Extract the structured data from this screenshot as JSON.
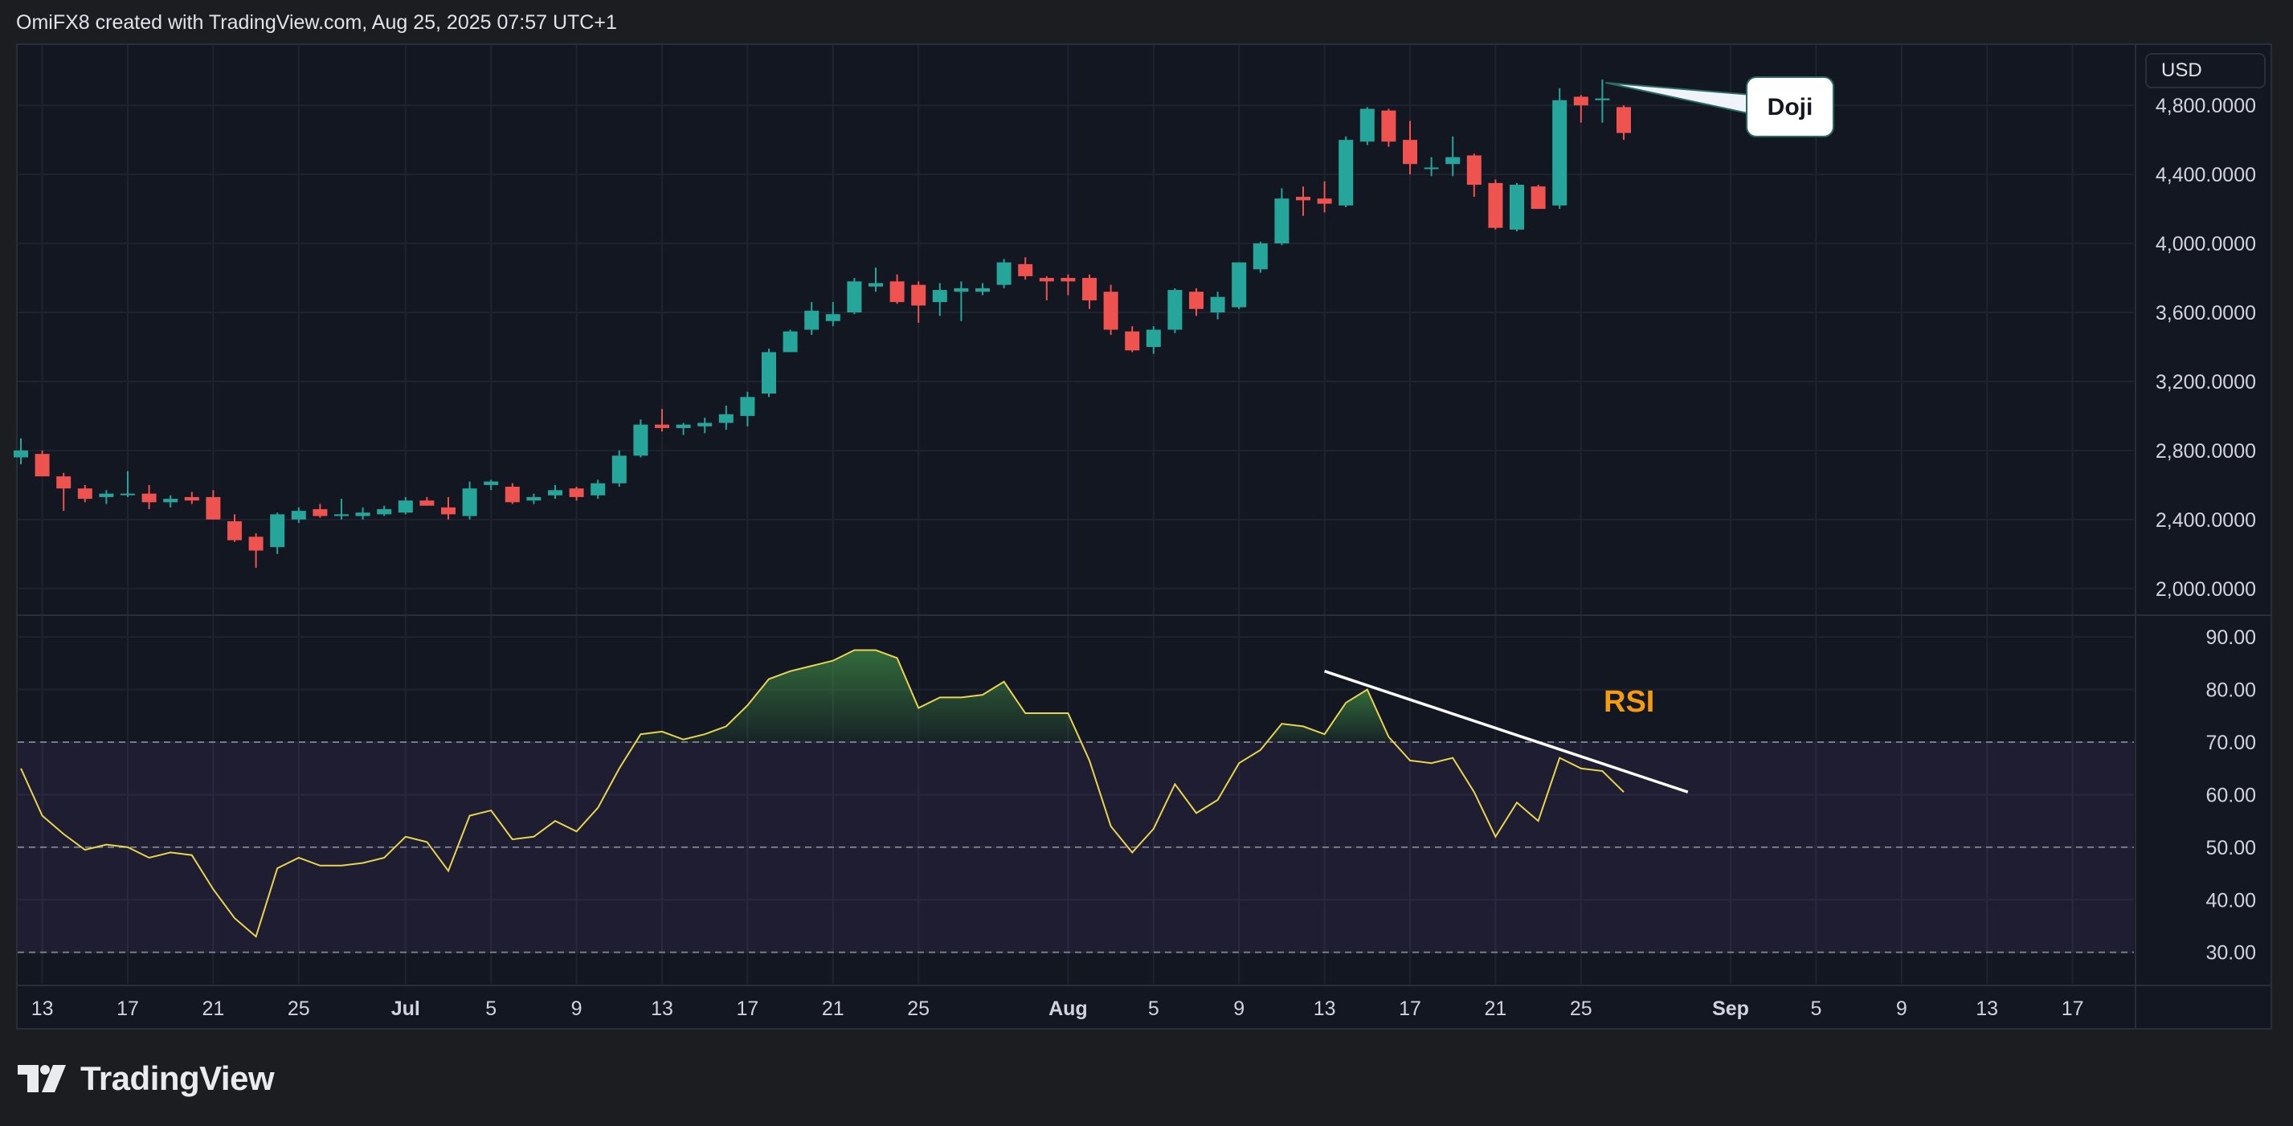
{
  "header": {
    "attribution": "OmiFX8 created with TradingView.com, Aug 25, 2025 07:57 UTC+1"
  },
  "currency_label": "USD",
  "brand": {
    "name": "TradingView"
  },
  "colors": {
    "background": "#131722",
    "up_candle": "#26a69a",
    "down_candle": "#ef5350",
    "rsi_line": "#e8d44d",
    "rsi_band": "#7e57c2",
    "trendline": "#ffffff",
    "rsi_label": "#f39c12"
  },
  "annotations": {
    "doji_label": "Doji",
    "rsi_label": "RSI"
  },
  "chart_data": [
    {
      "type": "candlestick",
      "price_axis": {
        "ylim": [
          1850,
          5150
        ],
        "ticks": [
          "2,000.0000",
          "2,400.0000",
          "2,800.0000",
          "3,200.0000",
          "3,600.0000",
          "4,000.0000",
          "4,400.0000",
          "4,800.0000"
        ],
        "tick_values": [
          2000,
          2400,
          2800,
          3200,
          3600,
          4000,
          4400,
          4800
        ]
      },
      "x_axis": {
        "labels": [
          "13",
          "17",
          "21",
          "25",
          "Jul",
          "5",
          "9",
          "13",
          "17",
          "21",
          "25",
          "Aug",
          "5",
          "9",
          "13",
          "17",
          "21",
          "25",
          "Sep",
          "5",
          "9",
          "13",
          "17"
        ],
        "label_index": [
          1,
          5,
          9,
          13,
          18,
          22,
          26,
          30,
          34,
          38,
          42,
          49,
          53,
          57,
          61,
          65,
          69,
          73,
          80,
          84,
          88,
          92,
          96
        ]
      },
      "candles": [
        [
          2760,
          2870,
          2720,
          2800
        ],
        [
          2780,
          2800,
          2660,
          2650
        ],
        [
          2650,
          2670,
          2450,
          2580
        ],
        [
          2580,
          2600,
          2500,
          2520
        ],
        [
          2530,
          2570,
          2490,
          2550
        ],
        [
          2550,
          2680,
          2530,
          2550
        ],
        [
          2550,
          2600,
          2460,
          2500
        ],
        [
          2500,
          2540,
          2470,
          2520
        ],
        [
          2530,
          2560,
          2490,
          2510
        ],
        [
          2530,
          2570,
          2400,
          2400
        ],
        [
          2390,
          2430,
          2270,
          2280
        ],
        [
          2300,
          2320,
          2120,
          2220
        ],
        [
          2240,
          2440,
          2200,
          2430
        ],
        [
          2400,
          2470,
          2380,
          2450
        ],
        [
          2460,
          2490,
          2410,
          2420
        ],
        [
          2420,
          2520,
          2400,
          2430
        ],
        [
          2420,
          2470,
          2400,
          2440
        ],
        [
          2430,
          2480,
          2420,
          2460
        ],
        [
          2440,
          2530,
          2430,
          2510
        ],
        [
          2510,
          2530,
          2480,
          2480
        ],
        [
          2470,
          2530,
          2400,
          2430
        ],
        [
          2420,
          2620,
          2400,
          2580
        ],
        [
          2600,
          2630,
          2570,
          2620
        ],
        [
          2590,
          2610,
          2490,
          2500
        ],
        [
          2510,
          2550,
          2490,
          2530
        ],
        [
          2540,
          2600,
          2520,
          2570
        ],
        [
          2580,
          2590,
          2510,
          2530
        ],
        [
          2540,
          2630,
          2520,
          2610
        ],
        [
          2610,
          2800,
          2590,
          2770
        ],
        [
          2770,
          2980,
          2760,
          2950
        ],
        [
          2950,
          3040,
          2910,
          2930
        ],
        [
          2930,
          2960,
          2890,
          2950
        ],
        [
          2940,
          2990,
          2900,
          2960
        ],
        [
          2960,
          3060,
          2920,
          3010
        ],
        [
          3000,
          3140,
          2940,
          3110
        ],
        [
          3130,
          3390,
          3110,
          3370
        ],
        [
          3370,
          3500,
          3370,
          3490
        ],
        [
          3500,
          3660,
          3470,
          3610
        ],
        [
          3550,
          3660,
          3520,
          3590
        ],
        [
          3600,
          3800,
          3590,
          3780
        ],
        [
          3750,
          3860,
          3720,
          3770
        ],
        [
          3780,
          3820,
          3650,
          3660
        ],
        [
          3760,
          3780,
          3540,
          3640
        ],
        [
          3660,
          3770,
          3580,
          3730
        ],
        [
          3720,
          3780,
          3550,
          3740
        ],
        [
          3720,
          3770,
          3700,
          3740
        ],
        [
          3760,
          3910,
          3740,
          3890
        ],
        [
          3880,
          3920,
          3790,
          3810
        ],
        [
          3800,
          3810,
          3670,
          3780
        ],
        [
          3800,
          3820,
          3700,
          3780
        ],
        [
          3800,
          3820,
          3620,
          3670
        ],
        [
          3720,
          3760,
          3470,
          3500
        ],
        [
          3490,
          3520,
          3370,
          3380
        ],
        [
          3400,
          3520,
          3360,
          3500
        ],
        [
          3500,
          3740,
          3480,
          3730
        ],
        [
          3720,
          3740,
          3580,
          3620
        ],
        [
          3600,
          3720,
          3560,
          3690
        ],
        [
          3630,
          3890,
          3620,
          3890
        ],
        [
          3850,
          4010,
          3830,
          4000
        ],
        [
          4000,
          4320,
          3990,
          4260
        ],
        [
          4270,
          4330,
          4160,
          4250
        ],
        [
          4260,
          4360,
          4180,
          4230
        ],
        [
          4220,
          4620,
          4210,
          4600
        ],
        [
          4590,
          4790,
          4570,
          4780
        ],
        [
          4770,
          4780,
          4560,
          4590
        ],
        [
          4600,
          4710,
          4400,
          4460
        ],
        [
          4440,
          4500,
          4390,
          4440
        ],
        [
          4460,
          4620,
          4390,
          4500
        ],
        [
          4510,
          4520,
          4270,
          4340
        ],
        [
          4350,
          4370,
          4080,
          4090
        ],
        [
          4080,
          4350,
          4070,
          4340
        ],
        [
          4330,
          4340,
          4200,
          4200
        ],
        [
          4220,
          4900,
          4200,
          4830
        ],
        [
          4850,
          4860,
          4700,
          4800
        ],
        [
          4830,
          4950,
          4700,
          4840
        ],
        [
          4790,
          4800,
          4600,
          4640
        ]
      ],
      "doji_index": 74
    },
    {
      "type": "line",
      "name": "RSI",
      "ylim": [
        24,
        94
      ],
      "ticks": [
        "30.00",
        "40.00",
        "50.00",
        "60.00",
        "70.00",
        "80.00",
        "90.00"
      ],
      "tick_values": [
        30,
        40,
        50,
        60,
        70,
        80,
        90
      ],
      "overbought": 70,
      "midline": 50,
      "oversold": 30,
      "values": [
        65,
        56,
        52.5,
        49.5,
        50.5,
        50,
        48,
        49,
        48.5,
        42,
        36.5,
        33,
        46,
        48,
        46.5,
        46.5,
        47,
        48,
        52,
        51,
        45.5,
        56,
        57,
        51.5,
        52,
        55,
        53,
        57.5,
        65,
        71.5,
        72,
        70.5,
        71.5,
        73,
        77,
        82,
        83.5,
        84.5,
        85.5,
        87.5,
        87.5,
        86,
        76.5,
        78.5,
        78.5,
        79,
        81.5,
        75.5,
        75.5,
        75.5,
        66.5,
        54,
        49,
        53.5,
        62,
        56.5,
        59,
        66,
        68.5,
        73.5,
        73,
        71.5,
        77.5,
        80,
        71,
        66.5,
        66,
        67,
        60.5,
        52,
        58.5,
        55,
        67,
        65,
        64.5,
        60.5
      ],
      "trendline": {
        "x0": 61.0,
        "y0": 83.5,
        "x1": 78.0,
        "y1": 60.5
      }
    }
  ]
}
